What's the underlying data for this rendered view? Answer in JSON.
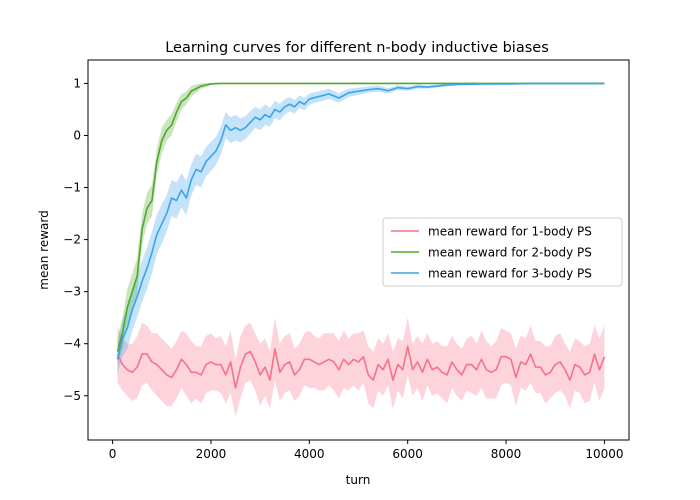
{
  "chart_data": {
    "type": "line",
    "title": "Learning curves for different n-body inductive biases",
    "xlabel": "turn",
    "ylabel": "mean reward",
    "xlim": [
      -500,
      10500
    ],
    "ylim": [
      -5.85,
      1.45
    ],
    "xticks": [
      0,
      2000,
      4000,
      6000,
      8000,
      10000
    ],
    "xtick_labels": [
      "0",
      "2000",
      "4000",
      "6000",
      "8000",
      "10000"
    ],
    "yticks": [
      -5,
      -4,
      -3,
      -2,
      -1,
      0,
      1
    ],
    "ytick_labels": [
      "−5",
      "−4",
      "−3",
      "−2",
      "−1",
      "0",
      "1"
    ],
    "grid": false,
    "legend_position": "center-right",
    "series": [
      {
        "name": "mean reward for 1-body PS",
        "color": "#f77189",
        "band_color": "#f77189",
        "x": [
          100,
          200,
          300,
          400,
          500,
          600,
          700,
          800,
          900,
          1000,
          1100,
          1200,
          1300,
          1400,
          1500,
          1600,
          1700,
          1800,
          1900,
          2000,
          2100,
          2200,
          2300,
          2400,
          2500,
          2600,
          2700,
          2800,
          2900,
          3000,
          3100,
          3200,
          3300,
          3400,
          3500,
          3600,
          3700,
          3800,
          3900,
          4000,
          4100,
          4200,
          4300,
          4400,
          4500,
          4600,
          4700,
          4800,
          4900,
          5000,
          5100,
          5200,
          5300,
          5400,
          5500,
          5600,
          5700,
          5800,
          5900,
          6000,
          6100,
          6200,
          6300,
          6400,
          6500,
          6600,
          6700,
          6800,
          6900,
          7000,
          7100,
          7200,
          7300,
          7400,
          7500,
          7600,
          7700,
          7800,
          7900,
          8000,
          8100,
          8200,
          8300,
          8400,
          8500,
          8600,
          8700,
          8800,
          8900,
          9000,
          9100,
          9200,
          9300,
          9400,
          9500,
          9600,
          9700,
          9800,
          9900,
          10000
        ],
        "values": [
          -4.2,
          -4.4,
          -4.5,
          -4.55,
          -4.45,
          -4.2,
          -4.2,
          -4.35,
          -4.4,
          -4.5,
          -4.6,
          -4.65,
          -4.5,
          -4.3,
          -4.4,
          -4.55,
          -4.55,
          -4.6,
          -4.4,
          -4.35,
          -4.4,
          -4.4,
          -4.6,
          -4.35,
          -4.85,
          -4.45,
          -4.2,
          -4.15,
          -4.35,
          -4.6,
          -4.45,
          -4.7,
          -4.1,
          -4.55,
          -4.4,
          -4.35,
          -4.6,
          -4.5,
          -4.3,
          -4.3,
          -4.35,
          -4.4,
          -4.35,
          -4.3,
          -4.35,
          -4.5,
          -4.3,
          -4.4,
          -4.3,
          -4.35,
          -4.25,
          -4.6,
          -4.7,
          -4.4,
          -4.5,
          -4.3,
          -4.7,
          -4.4,
          -4.5,
          -4.05,
          -4.5,
          -4.35,
          -4.55,
          -4.3,
          -4.5,
          -4.45,
          -4.55,
          -4.6,
          -4.35,
          -4.5,
          -4.6,
          -4.4,
          -4.4,
          -4.5,
          -4.3,
          -4.5,
          -4.55,
          -4.5,
          -4.25,
          -4.25,
          -4.3,
          -4.65,
          -4.35,
          -4.4,
          -4.2,
          -4.45,
          -4.45,
          -4.6,
          -4.55,
          -4.4,
          -4.35,
          -4.5,
          -4.7,
          -4.4,
          -4.45,
          -4.6,
          -4.55,
          -4.2,
          -4.5,
          -4.25
        ],
        "band_halfwidth": [
          0.55,
          0.5,
          0.5,
          0.55,
          0.6,
          0.6,
          0.55,
          0.55,
          0.6,
          0.6,
          0.6,
          0.55,
          0.55,
          0.55,
          0.6,
          0.6,
          0.5,
          0.55,
          0.55,
          0.55,
          0.5,
          0.55,
          0.55,
          0.6,
          0.55,
          0.6,
          0.55,
          0.55,
          0.55,
          0.6,
          0.55,
          0.55,
          0.6,
          0.55,
          0.55,
          0.55,
          0.5,
          0.5,
          0.5,
          0.55,
          0.5,
          0.5,
          0.55,
          0.5,
          0.55,
          0.55,
          0.55,
          0.5,
          0.5,
          0.55,
          0.5,
          0.55,
          0.55,
          0.5,
          0.5,
          0.5,
          0.55,
          0.5,
          0.55,
          0.55,
          0.5,
          0.5,
          0.55,
          0.5,
          0.5,
          0.5,
          0.5,
          0.55,
          0.5,
          0.5,
          0.5,
          0.5,
          0.55,
          0.5,
          0.55,
          0.55,
          0.5,
          0.55,
          0.55,
          0.5,
          0.5,
          0.55,
          0.5,
          0.5,
          0.55,
          0.5,
          0.5,
          0.55,
          0.5,
          0.55,
          0.55,
          0.5,
          0.55,
          0.5,
          0.5,
          0.55,
          0.55,
          0.55,
          0.6,
          0.6
        ]
      },
      {
        "name": "mean reward for 2-body PS",
        "color": "#4fa829",
        "band_color": "#4fa829",
        "x": [
          100,
          200,
          300,
          400,
          500,
          600,
          700,
          800,
          900,
          1000,
          1100,
          1200,
          1300,
          1400,
          1500,
          1600,
          1700,
          1800,
          1900,
          2000,
          2200,
          2400,
          2600,
          2800,
          3000,
          3500,
          4000,
          4500,
          5000,
          5500,
          6000,
          6500,
          7000,
          7500,
          8000,
          8500,
          9000,
          9500,
          10000
        ],
        "values": [
          -4.15,
          -3.8,
          -3.3,
          -3.0,
          -2.7,
          -1.8,
          -1.4,
          -1.25,
          -0.5,
          -0.1,
          0.1,
          0.2,
          0.45,
          0.65,
          0.72,
          0.85,
          0.9,
          0.95,
          0.97,
          0.99,
          1.0,
          1.0,
          1.0,
          1.0,
          1.0,
          1.0,
          1.0,
          1.0,
          1.0,
          1.0,
          1.0,
          1.0,
          1.0,
          1.0,
          1.0,
          1.0,
          1.0,
          1.0,
          1.0
        ],
        "band_halfwidth": [
          0.25,
          0.3,
          0.35,
          0.35,
          0.35,
          0.3,
          0.3,
          0.3,
          0.25,
          0.25,
          0.2,
          0.2,
          0.18,
          0.15,
          0.12,
          0.1,
          0.08,
          0.05,
          0.04,
          0.02,
          0.01,
          0.01,
          0.01,
          0.01,
          0.0,
          0.0,
          0.0,
          0.0,
          0.0,
          0.0,
          0.0,
          0.0,
          0.0,
          0.0,
          0.0,
          0.0,
          0.0,
          0.0,
          0.0
        ]
      },
      {
        "name": "mean reward for 3-body PS",
        "color": "#3ba3ec",
        "band_color": "#3ba3ec",
        "x": [
          100,
          200,
          300,
          400,
          500,
          600,
          700,
          800,
          900,
          1000,
          1100,
          1200,
          1300,
          1400,
          1500,
          1600,
          1700,
          1800,
          1900,
          2000,
          2100,
          2200,
          2300,
          2400,
          2500,
          2600,
          2700,
          2800,
          2900,
          3000,
          3100,
          3200,
          3300,
          3400,
          3500,
          3600,
          3700,
          3800,
          3900,
          4000,
          4200,
          4400,
          4600,
          4800,
          5000,
          5200,
          5400,
          5600,
          5800,
          6000,
          6200,
          6400,
          6600,
          6800,
          7000,
          7500,
          8000,
          8500,
          9000,
          9500,
          10000
        ],
        "values": [
          -4.3,
          -3.9,
          -3.7,
          -3.35,
          -3.1,
          -2.8,
          -2.55,
          -2.25,
          -1.9,
          -1.7,
          -1.5,
          -1.2,
          -1.25,
          -1.05,
          -1.2,
          -0.85,
          -0.65,
          -0.7,
          -0.5,
          -0.4,
          -0.3,
          -0.1,
          0.2,
          0.1,
          0.15,
          0.1,
          0.15,
          0.25,
          0.35,
          0.3,
          0.4,
          0.35,
          0.5,
          0.45,
          0.55,
          0.6,
          0.55,
          0.65,
          0.6,
          0.7,
          0.75,
          0.8,
          0.72,
          0.82,
          0.85,
          0.88,
          0.9,
          0.86,
          0.92,
          0.9,
          0.94,
          0.93,
          0.95,
          0.97,
          0.98,
          0.99,
          0.99,
          1.0,
          1.0,
          1.0,
          1.0
        ],
        "band_halfwidth": [
          0.3,
          0.35,
          0.4,
          0.4,
          0.4,
          0.4,
          0.4,
          0.4,
          0.38,
          0.38,
          0.35,
          0.35,
          0.35,
          0.33,
          0.33,
          0.3,
          0.3,
          0.3,
          0.28,
          0.28,
          0.27,
          0.27,
          0.25,
          0.25,
          0.25,
          0.23,
          0.22,
          0.22,
          0.2,
          0.2,
          0.2,
          0.18,
          0.17,
          0.16,
          0.15,
          0.14,
          0.13,
          0.12,
          0.12,
          0.11,
          0.1,
          0.1,
          0.09,
          0.08,
          0.07,
          0.06,
          0.06,
          0.05,
          0.05,
          0.04,
          0.04,
          0.03,
          0.03,
          0.03,
          0.02,
          0.02,
          0.02,
          0.02,
          0.02,
          0.02,
          0.02
        ]
      }
    ]
  }
}
